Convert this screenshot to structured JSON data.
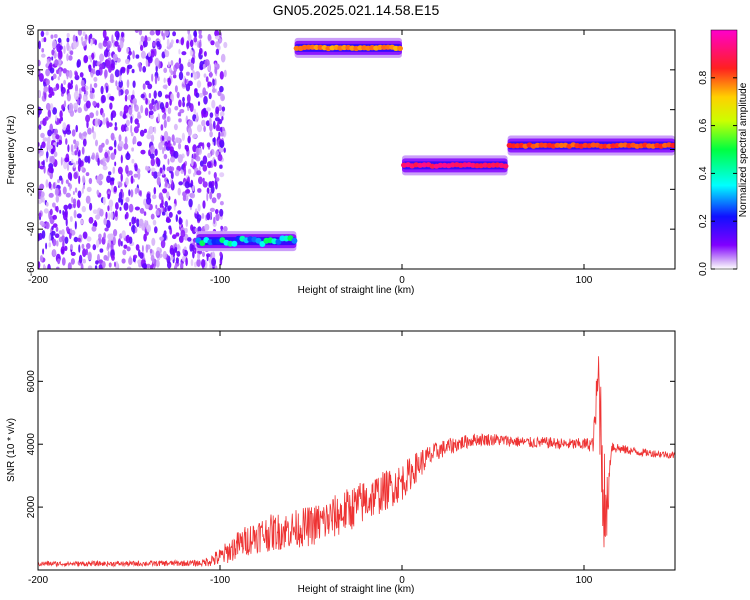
{
  "title": "GN05.2025.021.14.58.E15",
  "colors": {
    "snr_line": "#ee3333",
    "axis": "#000000",
    "background": "#ffffff"
  },
  "chart_data": [
    {
      "type": "heatmap",
      "xlabel": "Height of straight line (km)",
      "ylabel": "Frequency (Hz)",
      "xlim": [
        -200,
        150
      ],
      "ylim": [
        -60,
        60
      ],
      "x_ticks": [
        -200,
        -100,
        0,
        100
      ],
      "y_ticks": [
        -60,
        -40,
        -20,
        0,
        20,
        40,
        60
      ],
      "colorbar": {
        "label": "Normalized spectral amplitude",
        "range": [
          0,
          1
        ],
        "ticks": [
          0.0,
          0.2,
          0.4,
          0.6,
          0.8
        ],
        "colormap": "rainbow (purple → blue → cyan → green → yellow → red → magenta)"
      },
      "features": [
        {
          "name": "noise region",
          "x_range": [
            -200,
            -100
          ],
          "freq_range": [
            -60,
            60
          ],
          "amplitude": 0.1
        },
        {
          "name": "band",
          "x_range": [
            -113,
            -58
          ],
          "center_freq": -46,
          "amplitude": 0.45
        },
        {
          "name": "band",
          "x_range": [
            -59,
            0
          ],
          "center_freq": 51,
          "amplitude": 0.8
        },
        {
          "name": "band",
          "x_range": [
            0,
            58
          ],
          "center_freq": -8,
          "amplitude": 0.95
        },
        {
          "name": "band",
          "x_range": [
            58,
            150
          ],
          "center_freq": 2,
          "amplitude": 0.85
        }
      ]
    },
    {
      "type": "line",
      "xlabel": "Height of straight line (km)",
      "ylabel": "SNR (10 * v/v)",
      "xlim": [
        -200,
        150
      ],
      "ylim": [
        0,
        7600
      ],
      "x_ticks": [
        -200,
        -100,
        0,
        100
      ],
      "y_ticks": [
        2000,
        4000,
        6000
      ],
      "series": [
        {
          "x": [
            -200,
            -150,
            -110,
            -100,
            -90,
            -80,
            -70,
            -60,
            -50,
            -40,
            -30,
            -20,
            -10,
            0,
            10,
            20,
            30,
            40,
            50,
            60,
            70,
            80,
            90,
            100,
            105,
            108,
            110,
            112,
            115,
            120,
            130,
            140,
            150
          ],
          "values": [
            200,
            200,
            220,
            400,
            800,
            1100,
            1200,
            1300,
            1400,
            1600,
            1900,
            2200,
            2500,
            2800,
            3400,
            3800,
            4000,
            4150,
            4150,
            4100,
            4050,
            4050,
            4000,
            4000,
            4000,
            6200,
            3600,
            1400,
            3950,
            3850,
            3750,
            3700,
            3650
          ],
          "noise": [
            80,
            80,
            100,
            300,
            450,
            550,
            600,
            600,
            650,
            700,
            700,
            700,
            650,
            600,
            450,
            300,
            250,
            200,
            200,
            180,
            180,
            180,
            180,
            200,
            250,
            1200,
            2500,
            1200,
            250,
            150,
            130,
            120,
            120
          ]
        }
      ]
    }
  ]
}
